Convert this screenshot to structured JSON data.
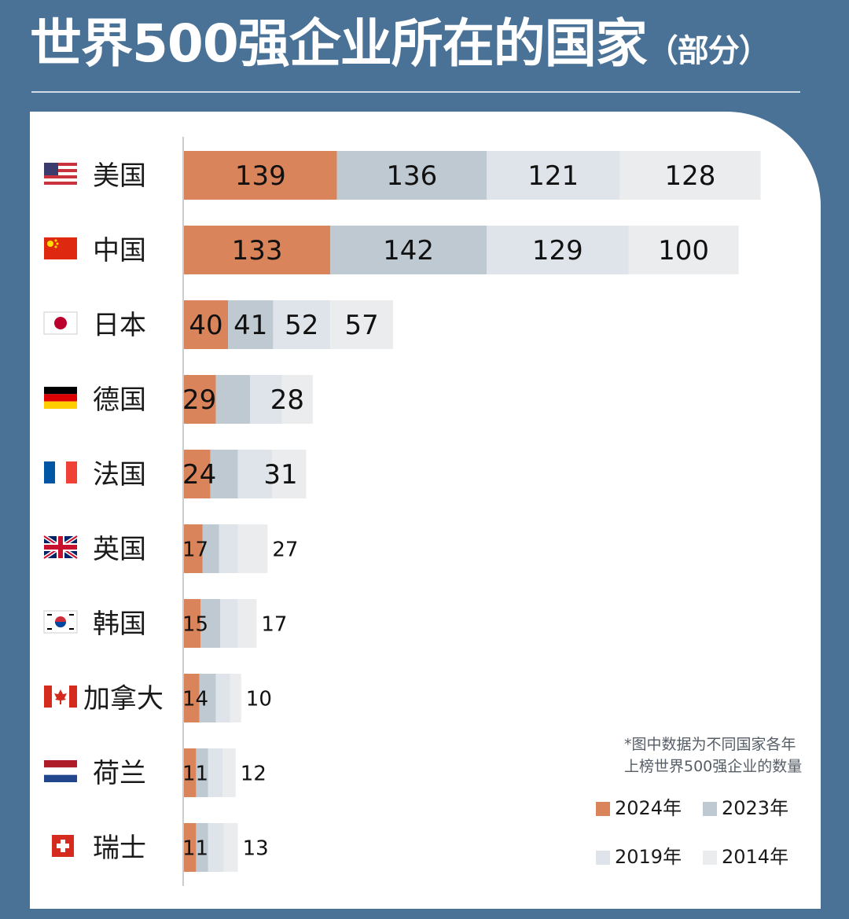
{
  "chart_data": {
    "type": "bar",
    "title": "世界500强企业所在的国家",
    "subtitle": "（部分）",
    "categories": [
      "美国",
      "中国",
      "日本",
      "德国",
      "法国",
      "英国",
      "韩国",
      "加拿大",
      "荷兰",
      "瑞士"
    ],
    "series": [
      {
        "name": "2024年",
        "color": "#d9845a",
        "values": [
          139,
          133,
          40,
          29,
          24,
          17,
          15,
          14,
          11,
          11
        ]
      },
      {
        "name": "2023年",
        "color": "#bec9d2",
        "values": [
          136,
          142,
          41,
          31,
          25,
          15,
          18,
          15,
          11,
          11
        ]
      },
      {
        "name": "2019年",
        "color": "#dfe3ea",
        "values": [
          121,
          129,
          52,
          29,
          31,
          17,
          16,
          13,
          13,
          14
        ]
      },
      {
        "name": "2014年",
        "color": "#ebeced",
        "values": [
          128,
          100,
          57,
          28,
          31,
          27,
          17,
          10,
          12,
          13
        ]
      }
    ],
    "stacked": true,
    "shown_labels": [
      [
        139,
        136,
        121,
        128
      ],
      [
        133,
        142,
        129,
        100
      ],
      [
        40,
        41,
        52,
        57
      ],
      [
        29,
        null,
        null,
        28
      ],
      [
        24,
        null,
        null,
        31
      ],
      [
        17,
        null,
        null,
        27
      ],
      [
        15,
        null,
        null,
        17
      ],
      [
        14,
        null,
        null,
        10
      ],
      [
        11,
        null,
        null,
        12
      ],
      [
        11,
        null,
        null,
        13
      ]
    ],
    "legend_position": "bottom-right",
    "note": [
      "*图中数据为不同国家各年",
      "上榜世界500强企业的数量"
    ]
  },
  "flags": [
    "us-flag-icon",
    "cn-flag-icon",
    "jp-flag-icon",
    "de-flag-icon",
    "fr-flag-icon",
    "gb-flag-icon",
    "kr-flag-icon",
    "ca-flag-icon",
    "nl-flag-icon",
    "ch-flag-icon"
  ]
}
